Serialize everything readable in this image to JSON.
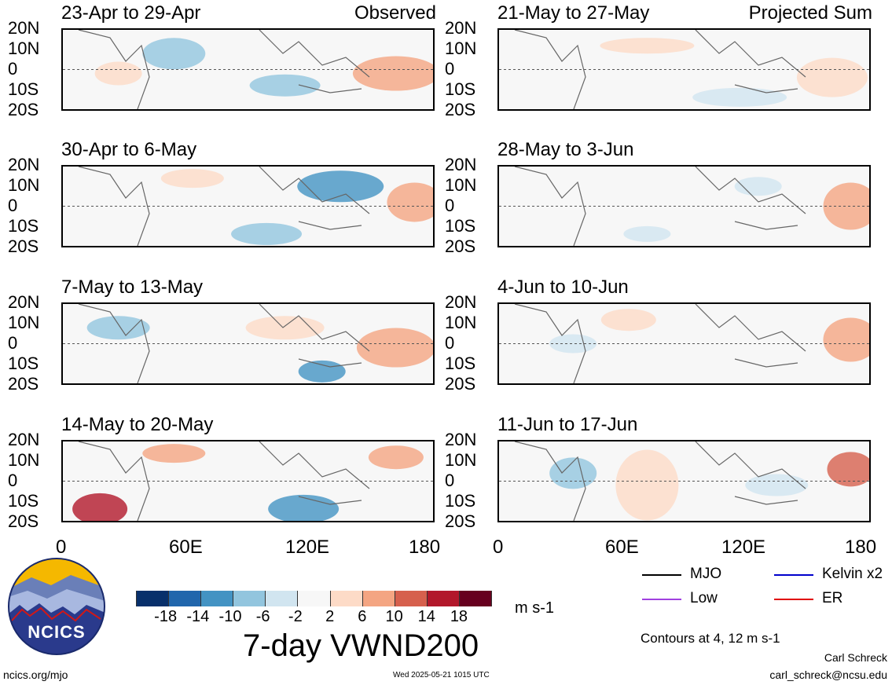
{
  "panels": [
    {
      "title": "23-Apr to 29-Apr",
      "tag": "Observed"
    },
    {
      "title": "21-May to 27-May",
      "tag": "Projected Sum"
    },
    {
      "title": "30-Apr to 6-May",
      "tag": ""
    },
    {
      "title": "28-May to 3-Jun",
      "tag": ""
    },
    {
      "title": "7-May to 13-May",
      "tag": ""
    },
    {
      "title": "4-Jun to 10-Jun",
      "tag": ""
    },
    {
      "title": "14-May to 20-May",
      "tag": ""
    },
    {
      "title": "11-Jun to 17-Jun",
      "tag": ""
    }
  ],
  "lat_labels": [
    "20N",
    "10N",
    "0",
    "10S",
    "20S"
  ],
  "lon_labels": [
    "0",
    "60E",
    "120E",
    "180"
  ],
  "colorbar": {
    "colors": [
      "#08306b",
      "#2166ac",
      "#4393c3",
      "#92c5de",
      "#d1e5f0",
      "#f7f7f7",
      "#fddbc7",
      "#f4a582",
      "#d6604d",
      "#b2182b",
      "#67001f"
    ],
    "ticks": [
      "-18",
      "-14",
      "-10",
      "-6",
      "-2",
      "2",
      "6",
      "10",
      "14",
      "18"
    ],
    "units": "m s-1"
  },
  "title": "7-day VWND200",
  "legend": [
    {
      "label": "MJO",
      "color": "#000000"
    },
    {
      "label": "Kelvin x2",
      "color": "#0000cc"
    },
    {
      "label": "Low",
      "color": "#a040e0"
    },
    {
      "label": "ER",
      "color": "#e00000"
    }
  ],
  "contours_note": "Contours at 4, 12 m s-1",
  "logo_text": "NCICS",
  "footer": {
    "left": "ncics.org/mjo",
    "center": "Wed 2025-05-21 1015 UTC",
    "author": "Carl Schreck",
    "email": "carl_schreck@ncsu.edu"
  }
}
